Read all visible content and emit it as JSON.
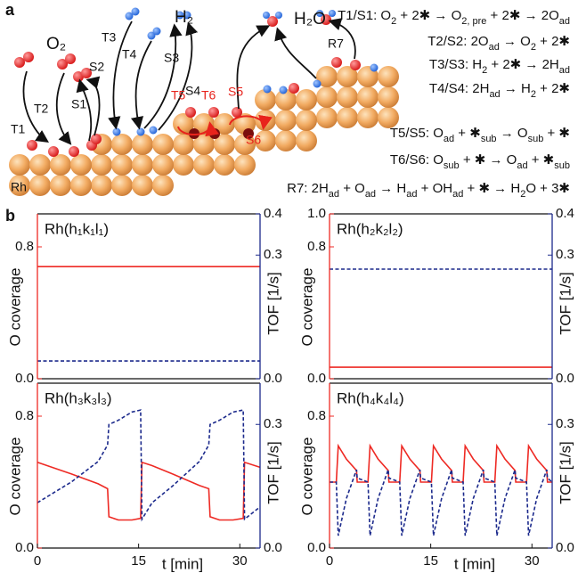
{
  "panel_labels": [
    "a",
    "b"
  ],
  "schematic": {
    "molecules": [
      "O₂",
      "H₂",
      "H₂O"
    ],
    "labels": [
      "T1",
      "T2",
      "S1",
      "S2",
      "T3",
      "T4",
      "S3",
      "S4",
      "T5",
      "T6",
      "S5",
      "S6",
      "R7",
      "Rh"
    ],
    "equations": [
      [
        "T1/S1: O",
        "2",
        " + 2✱ → O",
        "2, pre",
        " + 2✱ → 2O",
        "ad"
      ],
      [
        "T2/S2: 2O",
        "ad",
        " → O",
        "2",
        " + 2✱"
      ],
      [
        "T3/S3: H",
        "2",
        " + 2✱ → 2H",
        "ad"
      ],
      [
        "T4/S4: 2H",
        "ad",
        " → H",
        "2",
        " + 2✱"
      ],
      [
        "T5/S5: O",
        "ad",
        " + ✱",
        "sub",
        " → O",
        "sub",
        " + ✱"
      ],
      [
        "T6/S6: O",
        "sub",
        " + ✱ → O",
        "ad",
        " + ✱",
        "sub"
      ],
      [
        "R7: 2H",
        "ad",
        " + O",
        "ad",
        " → H",
        "ad",
        " + OH",
        "ad",
        " + ✱ → H",
        "2",
        "O + 3✱"
      ]
    ]
  },
  "chart_data": [
    {
      "type": "line",
      "title": "Rh(h₁k₁l₁)",
      "ylabel": "O coverage",
      "y2label": "TOF [1/s]",
      "xlim": [
        0,
        33
      ],
      "ylim": [
        0,
        1
      ],
      "y2lim": [
        0,
        0.4
      ],
      "yticks": [
        {
          "value": 0.8,
          "label": "0.8"
        },
        {
          "value": 0,
          "label": "0.0"
        }
      ],
      "y2ticks": [
        0.4,
        0.3,
        {
          "value": 0,
          "label": "0.0"
        }
      ],
      "x": [
        0,
        33
      ],
      "series": [
        {
          "color": "#ee2a24",
          "values": [
            0.68,
            0.68
          ]
        },
        {
          "color": "#1c2a8c",
          "axis": "y2",
          "dashed": true,
          "values": [
            0.043,
            0.043
          ]
        }
      ]
    },
    {
      "type": "line",
      "title": "Rh(h₂k₂l₂)",
      "ylabel": "O coverage",
      "y2label": "TOF [1/s]",
      "xlim": [
        0,
        33
      ],
      "ylim": [
        0,
        1
      ],
      "y2lim": [
        0,
        0.4
      ],
      "yticks": [
        {
          "value": 1,
          "label": "1.0"
        },
        {
          "value": 0.8,
          "label": "0.8"
        },
        {
          "value": 0,
          "label": "0.0"
        }
      ],
      "y2ticks": [
        0.4,
        0.3,
        {
          "value": 0,
          "label": "0.0"
        }
      ],
      "x": [
        0,
        33
      ],
      "series": [
        {
          "color": "#ee2a24",
          "values": [
            0.07,
            0.07
          ]
        },
        {
          "color": "#1c2a8c",
          "axis": "y2",
          "dashed": true,
          "values": [
            0.266,
            0.266
          ]
        }
      ]
    },
    {
      "type": "line",
      "title": "Rh(h₃k₃l₃)",
      "ylabel": "O coverage",
      "y2label": "TOF [1/s]",
      "xlabel": "t [min]",
      "xlim": [
        0,
        33
      ],
      "ylim": [
        0,
        1
      ],
      "y2lim": [
        0,
        0.4
      ],
      "xticks": [
        0,
        15,
        30
      ],
      "yticks": [
        {
          "value": 0.8,
          "label": "0.8"
        },
        {
          "value": 0,
          "label": "0.0"
        }
      ],
      "y2ticks": [
        0.3,
        {
          "value": 0,
          "label": "0.0"
        }
      ],
      "x": [
        0,
        5,
        9,
        10.4,
        10.6,
        12,
        14,
        15.3,
        15.5,
        17,
        20,
        24,
        25.4,
        25.6,
        27,
        29,
        30.5,
        30.7,
        33
      ],
      "series": [
        {
          "color": "#ee2a24",
          "values": [
            0.52,
            0.45,
            0.39,
            0.36,
            0.19,
            0.17,
            0.17,
            0.18,
            0.52,
            0.5,
            0.45,
            0.38,
            0.36,
            0.19,
            0.17,
            0.17,
            0.18,
            0.52,
            0.49
          ]
        },
        {
          "color": "#1c2a8c",
          "axis": "y2",
          "dashed": true,
          "values": [
            0.11,
            0.16,
            0.21,
            0.25,
            0.3,
            0.31,
            0.33,
            0.335,
            0.07,
            0.11,
            0.15,
            0.21,
            0.25,
            0.3,
            0.31,
            0.33,
            0.335,
            0.07,
            0.1
          ]
        }
      ]
    },
    {
      "type": "line",
      "title": "Rh(h₄k₄l₄)",
      "ylabel": "O coverage",
      "y2label": "TOF [1/s]",
      "xlabel": "t [min]",
      "xlim": [
        0,
        33
      ],
      "ylim": [
        0,
        1
      ],
      "y2lim": [
        0,
        0.4
      ],
      "xticks": [
        0,
        15,
        30
      ],
      "yticks": [
        {
          "value": 0.8,
          "label": "0.8"
        },
        {
          "value": 0,
          "label": "0.0"
        }
      ],
      "y2ticks": [
        0.3,
        {
          "value": 0,
          "label": "0.0"
        }
      ],
      "x": [
        0,
        1,
        1.3,
        2.5,
        4,
        4.1,
        5.7,
        6,
        7.2,
        8.7,
        8.8,
        10.4,
        10.7,
        11.9,
        13.4,
        13.5,
        15.1,
        15.4,
        16.6,
        18.1,
        18.2,
        19.8,
        20.1,
        21.3,
        22.8,
        22.9,
        24.5,
        24.8,
        26,
        27.5,
        27.6,
        29.2,
        29.5,
        30.7,
        32.2,
        32.3,
        33
      ],
      "series": [
        {
          "color": "#ee2a24",
          "values": [
            0.4,
            0.4,
            0.62,
            0.54,
            0.47,
            0.4,
            0.4,
            0.62,
            0.54,
            0.47,
            0.4,
            0.4,
            0.62,
            0.54,
            0.47,
            0.4,
            0.4,
            0.62,
            0.54,
            0.47,
            0.4,
            0.4,
            0.62,
            0.54,
            0.47,
            0.4,
            0.4,
            0.62,
            0.54,
            0.47,
            0.4,
            0.4,
            0.62,
            0.54,
            0.47,
            0.4,
            0.4
          ]
        },
        {
          "color": "#1c2a8c",
          "axis": "y2",
          "dashed": true,
          "values": [
            0.16,
            0.16,
            0.03,
            0.12,
            0.19,
            0.17,
            0.16,
            0.03,
            0.12,
            0.19,
            0.17,
            0.16,
            0.03,
            0.12,
            0.19,
            0.17,
            0.16,
            0.03,
            0.12,
            0.19,
            0.17,
            0.16,
            0.03,
            0.12,
            0.19,
            0.17,
            0.16,
            0.03,
            0.12,
            0.19,
            0.17,
            0.16,
            0.03,
            0.12,
            0.19,
            0.17,
            0.16
          ]
        }
      ]
    }
  ]
}
